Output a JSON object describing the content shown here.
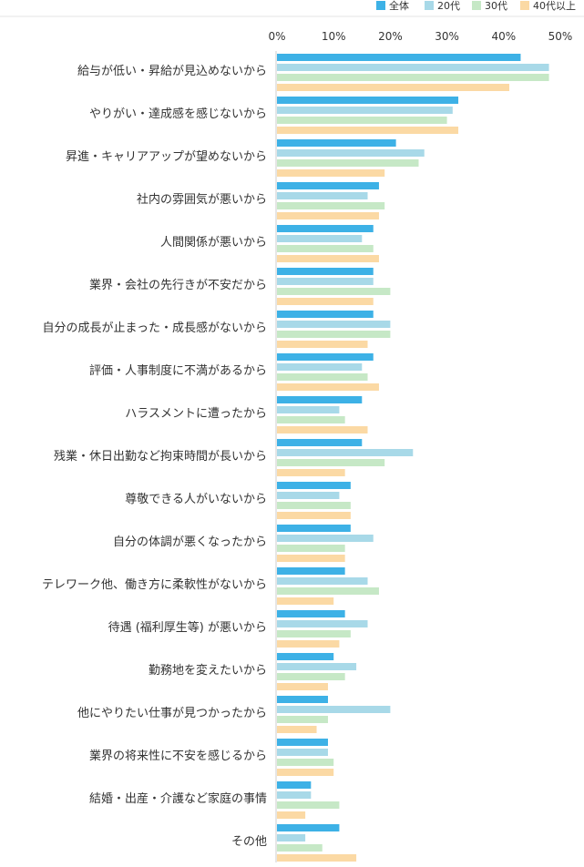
{
  "chart_data": {
    "type": "bar",
    "orientation": "horizontal",
    "legend_position": "top-right",
    "x_tick_labels": [
      "0%",
      "10%",
      "20%",
      "30%",
      "40%",
      "50%"
    ],
    "xlim": [
      0,
      50
    ],
    "grid": false,
    "categories": [
      "給与が低い・昇給が見込めないから",
      "やりがい・達成感を感じないから",
      "昇進・キャリアアップが望めないから",
      "社内の雰囲気が悪いから",
      "人間関係が悪いから",
      "業界・会社の先行きが不安だから",
      "自分の成長が止まった・成長感がないから",
      "評価・人事制度に不満があるから",
      "ハラスメントに遭ったから",
      "残業・休日出勤など拘束時間が長いから",
      "尊敬できる人がいないから",
      "自分の体調が悪くなったから",
      "テレワーク他、働き方に柔軟性がないから",
      "待遇 (福利厚生等) が悪いから",
      "勤務地を変えたいから",
      "他にやりたい仕事が見つかったから",
      "業界の将来性に不安を感じるから",
      "結婚・出産・介護など家庭の事情",
      "その他"
    ],
    "series": [
      {
        "name": "全体",
        "color": "#3db1e6",
        "values": [
          43,
          32,
          21,
          18,
          17,
          17,
          17,
          17,
          15,
          15,
          13,
          13,
          12,
          12,
          10,
          9,
          9,
          6,
          11
        ]
      },
      {
        "name": "20代",
        "color": "#a8d9e8",
        "values": [
          48,
          31,
          26,
          16,
          15,
          17,
          20,
          15,
          11,
          24,
          11,
          17,
          16,
          16,
          14,
          20,
          9,
          6,
          5
        ]
      },
      {
        "name": "30代",
        "color": "#c6e8c6",
        "values": [
          48,
          30,
          25,
          19,
          17,
          20,
          20,
          16,
          12,
          19,
          13,
          12,
          18,
          13,
          12,
          9,
          10,
          11,
          8
        ]
      },
      {
        "name": "40代以上",
        "color": "#fbd9a4",
        "values": [
          41,
          32,
          19,
          18,
          18,
          17,
          16,
          18,
          16,
          12,
          13,
          12,
          10,
          11,
          9,
          7,
          10,
          5,
          14
        ]
      }
    ]
  }
}
